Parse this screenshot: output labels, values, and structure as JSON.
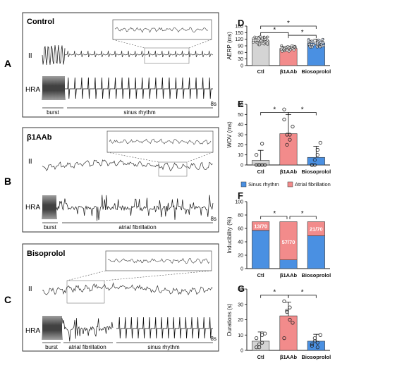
{
  "panels": {
    "A": {
      "letter": "A",
      "group": "Control",
      "lead_top": "II",
      "lead_bottom": "HRA",
      "seg1": "burst",
      "seg2": "sinus rhythm",
      "seg3": "",
      "time": "8s"
    },
    "B": {
      "letter": "B",
      "group": "β1AAb",
      "lead_top": "II",
      "lead_bottom": "HRA",
      "seg1": "burst",
      "seg2": "atrial fibrillation",
      "seg3": "",
      "time": "8s"
    },
    "C": {
      "letter": "C",
      "group": "Bisoprolol",
      "lead_top": "II",
      "lead_bottom": "HRA",
      "seg1": "burst",
      "seg2": "atrial fibrillation",
      "seg3": "sinus rhythm",
      "time": "8s"
    }
  },
  "colors": {
    "ctl": "#d4d4d4",
    "b1aab": "#f28b8b",
    "biso": "#4a90e2",
    "sinus": "#4a90e2",
    "af": "#f28b8b"
  },
  "chart_data": [
    {
      "panel": "D",
      "type": "bar",
      "ylabel": "AERP (ms)",
      "categories": [
        "Ctl",
        "β1AAb",
        "Biosoprolol"
      ],
      "values": [
        113,
        78,
        103
      ],
      "errors": [
        16,
        11,
        17
      ],
      "ylim": [
        0,
        180
      ],
      "yticks": [
        0,
        30,
        60,
        90,
        120,
        150,
        180
      ],
      "significance": [
        "*",
        "*",
        "*"
      ]
    },
    {
      "panel": "E",
      "type": "bar",
      "ylabel": "WOV (ms)",
      "categories": [
        "Ctl",
        "β1AAb",
        "Biosoprolol"
      ],
      "values": [
        4.5,
        31,
        7.5
      ],
      "errors": [
        10,
        19,
        11
      ],
      "ylim": [
        0,
        60
      ],
      "yticks": [
        0,
        10,
        20,
        30,
        40,
        50,
        60
      ],
      "points": [
        [
          10,
          0,
          0,
          0,
          0,
          0,
          21
        ],
        [
          55,
          30,
          25,
          38,
          45,
          20,
          30
        ],
        [
          0,
          0,
          15,
          22,
          0,
          5,
          10
        ]
      ],
      "significance": [
        "*",
        "*"
      ]
    },
    {
      "panel": "F",
      "type": "bar",
      "ylabel": "Inducibility (%)",
      "categories": [
        "Ctl",
        "β1AAb",
        "Biosoprolol"
      ],
      "series": [
        {
          "name": "Sinus rhythm",
          "values": [
            57,
            13,
            49
          ]
        },
        {
          "name": "Atrial fibrillation",
          "values": [
            13,
            57,
            21
          ]
        }
      ],
      "data_labels": [
        "13/70",
        "57/70",
        "21/70"
      ],
      "ylim": [
        0,
        100
      ],
      "yticks": [
        0,
        20,
        40,
        60,
        80,
        100
      ],
      "legend": "top",
      "significance": [
        "*",
        "*"
      ]
    },
    {
      "panel": "G",
      "type": "bar",
      "ylabel": "Durations (s)",
      "categories": [
        "Ctl",
        "β1AAb",
        "Biosoprolol"
      ],
      "values": [
        6,
        22.5,
        6
      ],
      "errors": [
        6,
        9,
        4.5
      ],
      "ylim": [
        0,
        40
      ],
      "yticks": [
        0,
        10,
        20,
        30,
        40
      ],
      "points": [
        [
          2,
          4,
          10,
          11,
          8,
          2,
          5
        ],
        [
          32,
          25,
          28,
          18,
          8,
          26,
          20
        ],
        [
          4,
          8,
          2,
          10,
          3,
          6,
          5
        ]
      ],
      "significance": [
        "*",
        "*"
      ]
    }
  ]
}
